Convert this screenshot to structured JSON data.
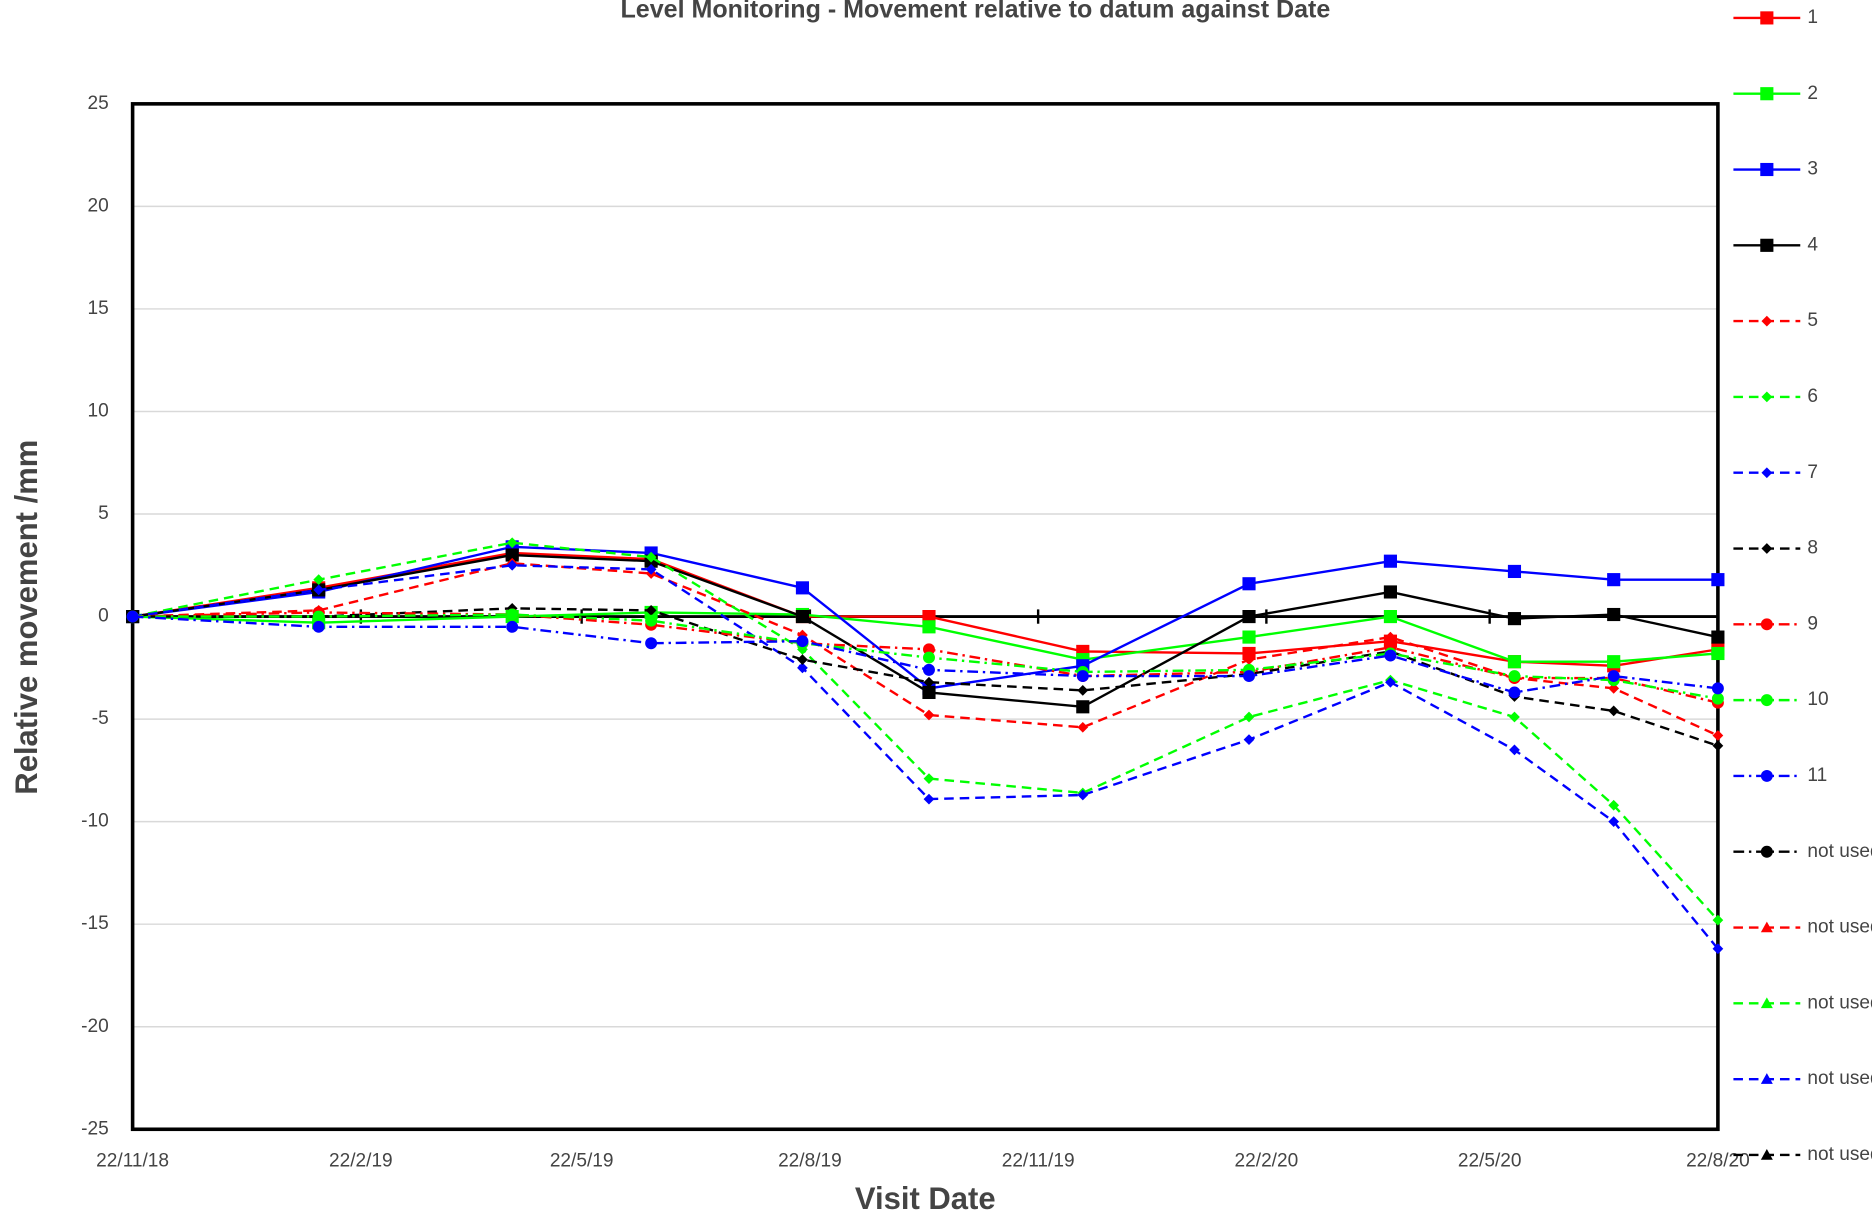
{
  "chart_data": {
    "type": "line",
    "title": "Level Monitoring - Movement relative to datum against Date",
    "xlabel": "Visit Date",
    "ylabel": "Relative movement /mm",
    "x": [
      "2018-11-22",
      "2019-02-05",
      "2019-04-24",
      "2019-06-19",
      "2019-08-19",
      "2019-10-09",
      "2019-12-10",
      "2020-02-15",
      "2020-04-12",
      "2020-06-01",
      "2020-07-11",
      "2020-08-22"
    ],
    "xlim": [
      "2018-11-22",
      "2020-08-22"
    ],
    "xticks": [
      {
        "value": "2018-11-22",
        "label": "22/11/18"
      },
      {
        "value": "2019-02-22",
        "label": "22/2/19"
      },
      {
        "value": "2019-05-22",
        "label": "22/5/19"
      },
      {
        "value": "2019-08-22",
        "label": "22/8/19"
      },
      {
        "value": "2019-11-22",
        "label": "22/11/19"
      },
      {
        "value": "2020-02-22",
        "label": "22/2/20"
      },
      {
        "value": "2020-05-22",
        "label": "22/5/20"
      },
      {
        "value": "2020-08-22",
        "label": "22/8/20"
      }
    ],
    "ylim": [
      -25,
      25
    ],
    "yticks": [
      -25,
      -20,
      -15,
      -10,
      -5,
      0,
      5,
      10,
      15,
      20,
      25
    ],
    "grid": true,
    "legend": "right",
    "series": [
      {
        "name": "1",
        "color": "#ff0000",
        "dash": "solid",
        "marker": "square",
        "values": [
          0,
          1.4,
          3.1,
          2.8,
          0,
          0,
          -1.7,
          -1.8,
          -1.2,
          -2.2,
          -2.4,
          -1.6
        ]
      },
      {
        "name": "2",
        "color": "#00ff00",
        "dash": "solid",
        "marker": "square",
        "values": [
          0,
          -0.3,
          0,
          0.2,
          0.1,
          -0.5,
          -2.1,
          -1.0,
          0,
          -2.2,
          -2.2,
          -1.8
        ]
      },
      {
        "name": "3",
        "color": "#0000ff",
        "dash": "solid",
        "marker": "square",
        "values": [
          0,
          1.2,
          3.4,
          3.1,
          1.4,
          -3.5,
          -2.4,
          1.6,
          2.7,
          2.2,
          1.8,
          1.8
        ]
      },
      {
        "name": "4",
        "color": "#000000",
        "dash": "solid",
        "marker": "square",
        "values": [
          0,
          1.3,
          3.0,
          2.7,
          0,
          -3.7,
          -4.4,
          0,
          1.2,
          -0.1,
          0.1,
          -1.0
        ]
      },
      {
        "name": "5",
        "color": "#ff0000",
        "dash": "dashed",
        "marker": "diamond",
        "values": [
          0,
          0.3,
          2.6,
          2.1,
          -0.9,
          -4.8,
          -5.4,
          -2.1,
          -1.0,
          -3.0,
          -3.5,
          -5.8
        ]
      },
      {
        "name": "6",
        "color": "#00ff00",
        "dash": "dashed",
        "marker": "diamond",
        "values": [
          0,
          1.8,
          3.6,
          2.9,
          -1.6,
          -7.9,
          -8.6,
          -4.9,
          -3.1,
          -4.9,
          -9.2,
          -14.8
        ]
      },
      {
        "name": "7",
        "color": "#0000ff",
        "dash": "dashed",
        "marker": "diamond",
        "values": [
          0,
          1.3,
          2.5,
          2.3,
          -2.5,
          -8.9,
          -8.7,
          -6.0,
          -3.2,
          -6.5,
          -10.0,
          -16.2
        ]
      },
      {
        "name": "8",
        "color": "#000000",
        "dash": "dashed",
        "marker": "diamond",
        "values": [
          0,
          0,
          0.4,
          0.3,
          -2.1,
          -3.2,
          -3.6,
          -2.8,
          -1.7,
          -3.9,
          -4.6,
          -6.3
        ]
      },
      {
        "name": "9",
        "color": "#ff0000",
        "dash": "dashdot",
        "marker": "circle",
        "values": [
          0,
          0.2,
          0.1,
          -0.4,
          -1.3,
          -1.6,
          -2.9,
          -2.7,
          -1.5,
          -3.0,
          -3.0,
          -4.2
        ]
      },
      {
        "name": "10",
        "color": "#00ff00",
        "dash": "dashdot",
        "marker": "circle",
        "values": [
          0,
          0,
          0.1,
          -0.2,
          -1.3,
          -2.0,
          -2.7,
          -2.6,
          -1.8,
          -2.9,
          -3.1,
          -4.0
        ]
      },
      {
        "name": "11",
        "color": "#0000ff",
        "dash": "dashdot",
        "marker": "circle",
        "values": [
          0,
          -0.5,
          -0.5,
          -1.3,
          -1.2,
          -2.6,
          -2.9,
          -2.9,
          -1.9,
          -3.7,
          -2.9,
          -3.5
        ]
      },
      {
        "name": "not used",
        "color": "#000000",
        "dash": "dashdot",
        "marker": "circle",
        "values": [
          null,
          null,
          null,
          null,
          null,
          null,
          null,
          null,
          null,
          null,
          null,
          null
        ]
      },
      {
        "name": "not used",
        "color": "#ff0000",
        "dash": "dashed",
        "marker": "triangle",
        "values": [
          null,
          null,
          null,
          null,
          null,
          null,
          null,
          null,
          null,
          null,
          null,
          null
        ]
      },
      {
        "name": "not used",
        "color": "#00ff00",
        "dash": "dashed",
        "marker": "triangle",
        "values": [
          null,
          null,
          null,
          null,
          null,
          null,
          null,
          null,
          null,
          null,
          null,
          null
        ]
      },
      {
        "name": "not used",
        "color": "#0000ff",
        "dash": "dashed",
        "marker": "triangle",
        "values": [
          null,
          null,
          null,
          null,
          null,
          null,
          null,
          null,
          null,
          null,
          null,
          null
        ]
      },
      {
        "name": "not used",
        "color": "#000000",
        "dash": "dashed",
        "marker": "triangle",
        "values": [
          null,
          null,
          null,
          null,
          null,
          null,
          null,
          null,
          null,
          null,
          null,
          null
        ]
      }
    ]
  }
}
